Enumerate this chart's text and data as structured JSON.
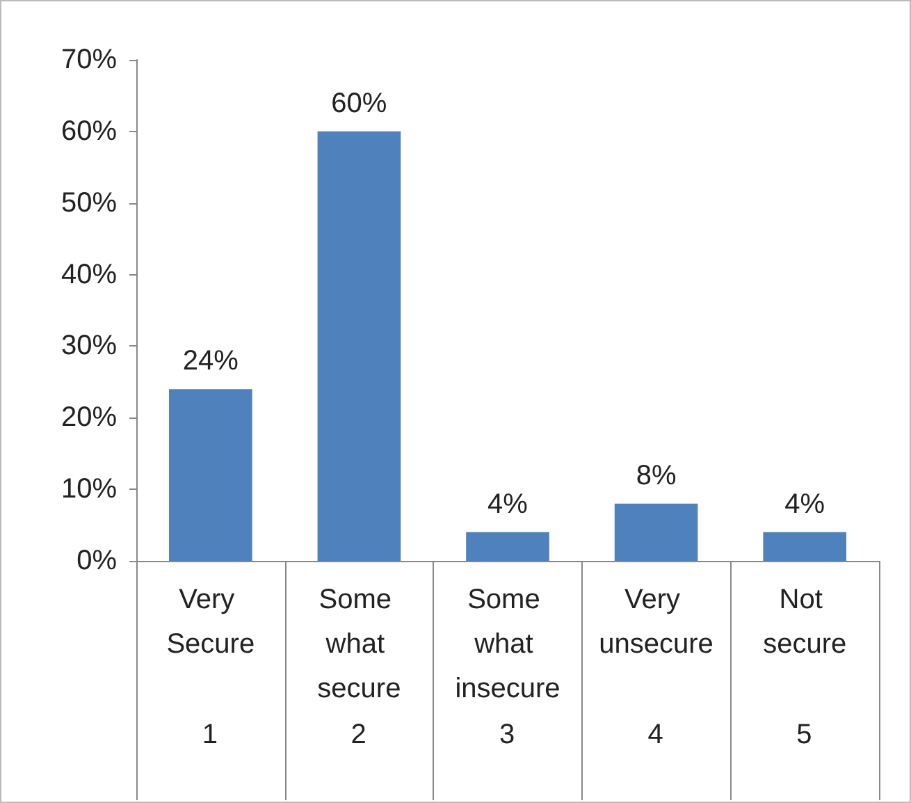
{
  "chart_data": {
    "type": "bar",
    "categories": [
      "Very Secure",
      "Some what secure",
      "Some what insecure",
      "Very unsecure",
      "Not secure"
    ],
    "values": [
      24,
      60,
      4,
      8,
      4
    ],
    "value_labels": [
      "24%",
      "60%",
      "4%",
      "8%",
      "4%"
    ],
    "color": "#4f81bd",
    "ylim": [
      0,
      70
    ],
    "yticks": [
      {
        "value": 0,
        "label": "0%"
      },
      {
        "value": 10,
        "label": "10%"
      },
      {
        "value": 20,
        "label": "20%"
      },
      {
        "value": 30,
        "label": "30%"
      },
      {
        "value": 40,
        "label": "40%"
      },
      {
        "value": 50,
        "label": "50%"
      },
      {
        "value": 60,
        "label": "60%"
      },
      {
        "value": 70,
        "label": "70%"
      }
    ],
    "annotations": [
      "1",
      "2",
      "3",
      "4",
      "5"
    ],
    "grid": false
  }
}
